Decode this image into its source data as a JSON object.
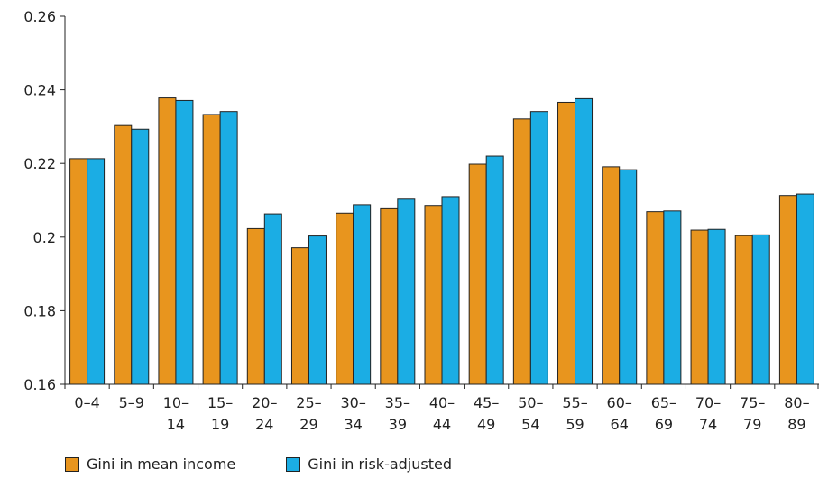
{
  "chart_data": {
    "type": "bar",
    "categories": [
      [
        "0–4"
      ],
      [
        "5–9"
      ],
      [
        "10–",
        "14"
      ],
      [
        "15–",
        "19"
      ],
      [
        "20–",
        "24"
      ],
      [
        "25–",
        "29"
      ],
      [
        "30–",
        "34"
      ],
      [
        "35–",
        "39"
      ],
      [
        "40–",
        "44"
      ],
      [
        "45–",
        "49"
      ],
      [
        "50–",
        "54"
      ],
      [
        "55–",
        "59"
      ],
      [
        "60–",
        "64"
      ],
      [
        "65–",
        "69"
      ],
      [
        "70–",
        "74"
      ],
      [
        "75–",
        "79"
      ],
      [
        "80–",
        "89"
      ]
    ],
    "series": [
      {
        "name": "Gini in mean income",
        "color": "#E8951E",
        "values": [
          0.2213,
          0.2303,
          0.2378,
          0.2333,
          0.2023,
          0.1971,
          0.2065,
          0.2077,
          0.2086,
          0.2198,
          0.2321,
          0.2366,
          0.2191,
          0.2069,
          0.2019,
          0.2004,
          0.2113
        ]
      },
      {
        "name": "Gini in risk-adjusted",
        "color": "#1BADE4",
        "values": [
          0.2213,
          0.2293,
          0.2371,
          0.2341,
          0.2063,
          0.2003,
          0.2088,
          0.2103,
          0.211,
          0.222,
          0.2341,
          0.2376,
          0.2183,
          0.2071,
          0.2021,
          0.2006,
          0.2117
        ]
      }
    ],
    "ylim": [
      0.16,
      0.26
    ],
    "yticks": [
      "0.16",
      "0.18",
      "0.2",
      "0.22",
      "0.24",
      "0.26"
    ],
    "xlabel": "",
    "ylabel": "",
    "title": "",
    "grid": false,
    "legend_position": "bottom-left"
  }
}
